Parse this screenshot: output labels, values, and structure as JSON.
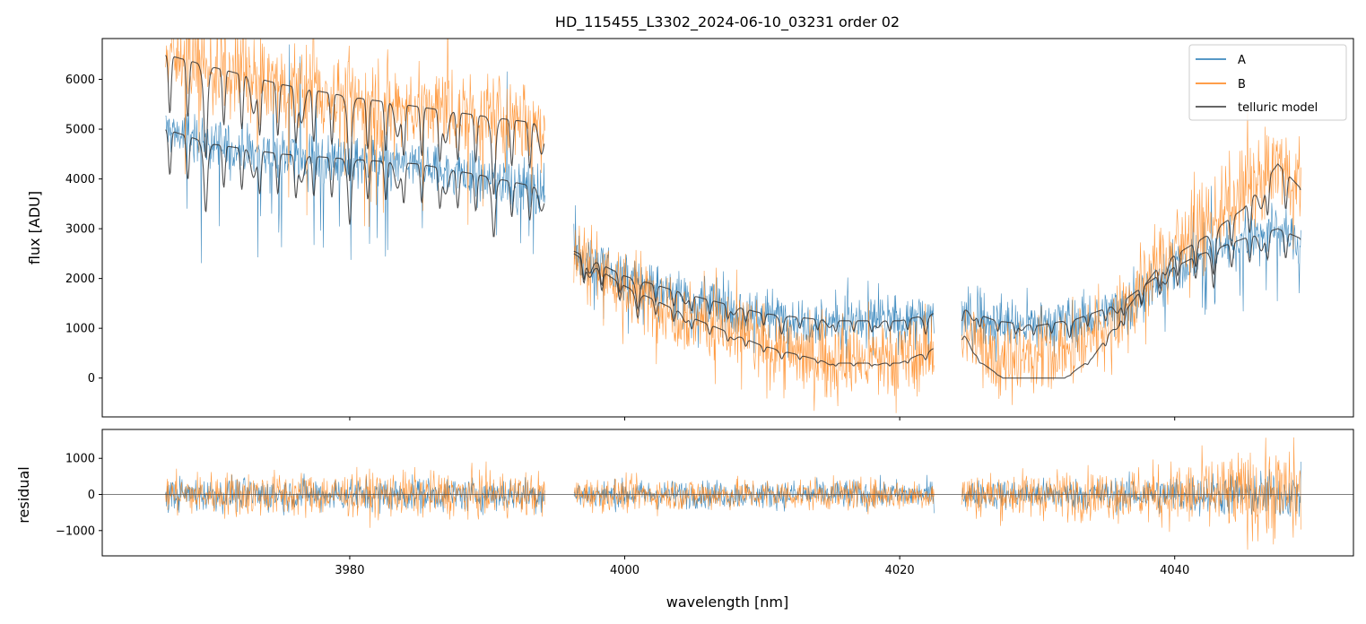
{
  "colors": {
    "A": "#1f77b4",
    "B": "#ff7f0e",
    "model": "#333333",
    "zero_line": "#555555"
  },
  "chart_data": [
    {
      "panel": "top",
      "type": "line",
      "title": "HD_115455_L3302_2024-06-10_03231  order 02",
      "xlabel": "",
      "ylabel": "flux [ADU]",
      "xlim": [
        3962,
        4053
      ],
      "ylim": [
        -780,
        6820
      ],
      "x_ticks": [
        3980,
        4000,
        4020,
        4040
      ],
      "y_ticks": [
        0,
        1000,
        2000,
        3000,
        4000,
        5000,
        6000
      ],
      "y_tick_labels": [
        "0",
        "1000",
        "2000",
        "3000",
        "4000",
        "5000",
        "6000"
      ],
      "legend": {
        "position": "top-right",
        "entries": [
          {
            "label": "A",
            "color": "#1f77b4"
          },
          {
            "label": "B",
            "color": "#ff7f0e"
          },
          {
            "label": "telluric model",
            "color": "#333333"
          }
        ]
      },
      "segments": [
        {
          "x0": 3966.6,
          "x1": 3994.2
        },
        {
          "x0": 3996.3,
          "x1": 4022.5
        },
        {
          "x0": 4024.5,
          "x1": 4049.2
        }
      ],
      "series": [
        {
          "name": "A",
          "continuum_points": [
            [
              3966.6,
              5000
            ],
            [
              3970,
              4700
            ],
            [
              3975,
              4450
            ],
            [
              3980,
              4350
            ],
            [
              3985,
              4250
            ],
            [
              3990,
              4000
            ],
            [
              3994.2,
              3800
            ],
            [
              3996.3,
              2500
            ],
            [
              4000,
              2000
            ],
            [
              4005,
              1600
            ],
            [
              4010,
              1250
            ],
            [
              4015,
              1150
            ],
            [
              4020,
              1150
            ],
            [
              4022.5,
              1250
            ],
            [
              4024.5,
              1300
            ],
            [
              4027,
              1100
            ],
            [
              4030,
              1050
            ],
            [
              4033,
              1150
            ],
            [
              4036,
              1400
            ],
            [
              4039,
              2000
            ],
            [
              4042,
              2500
            ],
            [
              4045,
              2800
            ],
            [
              4047.5,
              3000
            ],
            [
              4049.2,
              2700
            ]
          ],
          "noise": 380
        },
        {
          "name": "B",
          "continuum_points": [
            [
              3966.6,
              6500
            ],
            [
              3970,
              6200
            ],
            [
              3975,
              5850
            ],
            [
              3980,
              5600
            ],
            [
              3985,
              5400
            ],
            [
              3990,
              5250
            ],
            [
              3994.2,
              5100
            ],
            [
              3996.3,
              2600
            ],
            [
              4000,
              1800
            ],
            [
              4005,
              1250
            ],
            [
              4010,
              700
            ],
            [
              4015,
              350
            ],
            [
              4020,
              350
            ],
            [
              4022.5,
              600
            ],
            [
              4024.5,
              900
            ],
            [
              4027,
              500
            ],
            [
              4030,
              400
            ],
            [
              4033,
              700
            ],
            [
              4036,
              1300
            ],
            [
              4039,
              2400
            ],
            [
              4042,
              3000
            ],
            [
              4045,
              3700
            ],
            [
              4047.5,
              4300
            ],
            [
              4049.2,
              3900
            ]
          ],
          "noise": 600
        },
        {
          "name": "telluric model A",
          "continuum_points": [
            [
              3966.6,
              5000
            ],
            [
              3970,
              4700
            ],
            [
              3975,
              4500
            ],
            [
              3980,
              4400
            ],
            [
              3985,
              4300
            ],
            [
              3990,
              4050
            ],
            [
              3994.2,
              3800
            ],
            [
              3996.3,
              2550
            ],
            [
              4000,
              2050
            ],
            [
              4005,
              1650
            ],
            [
              4010,
              1300
            ],
            [
              4015,
              1150
            ],
            [
              4020,
              1150
            ],
            [
              4022.5,
              1300
            ],
            [
              4024.5,
              1400
            ],
            [
              4027,
              1150
            ],
            [
              4030,
              1050
            ],
            [
              4033,
              1200
            ],
            [
              4036,
              1500
            ],
            [
              4039,
              2100
            ],
            [
              4042,
              2500
            ],
            [
              4045,
              2800
            ],
            [
              4047.5,
              3000
            ],
            [
              4049.2,
              2800
            ]
          ]
        },
        {
          "name": "telluric model B",
          "continuum_points": [
            [
              3966.6,
              6500
            ],
            [
              3970,
              6250
            ],
            [
              3975,
              5900
            ],
            [
              3980,
              5650
            ],
            [
              3985,
              5450
            ],
            [
              3990,
              5250
            ],
            [
              3994.2,
              5100
            ],
            [
              3996.3,
              2500
            ],
            [
              4000,
              1850
            ],
            [
              4005,
              1200
            ],
            [
              4010,
              650
            ],
            [
              4015,
              300
            ],
            [
              4020,
              300
            ],
            [
              4022.5,
              600
            ],
            [
              4024.5,
              950
            ],
            [
              4026,
              300
            ],
            [
              4027.5,
              0
            ],
            [
              4032,
              0
            ],
            [
              4034,
              400
            ],
            [
              4036,
              1200
            ],
            [
              4039,
              2300
            ],
            [
              4042,
              2800
            ],
            [
              4045,
              3400
            ],
            [
              4047.5,
              4300
            ],
            [
              4049.2,
              3800
            ]
          ]
        }
      ]
    },
    {
      "panel": "bottom",
      "type": "line",
      "title": "",
      "xlabel": "wavelength [nm]",
      "ylabel": "residual",
      "xlim": [
        3962,
        4053
      ],
      "ylim": [
        -1700,
        1800
      ],
      "x_ticks": [
        3980,
        4000,
        4020,
        4040
      ],
      "x_tick_labels": [
        "3980",
        "4000",
        "4020",
        "4040"
      ],
      "y_ticks": [
        -1000,
        0,
        1000
      ],
      "y_tick_labels": [
        "−1000",
        "0",
        "1000"
      ],
      "series": [
        {
          "name": "A residual",
          "amplitude_points": [
            [
              3966.6,
              600
            ],
            [
              3994.2,
              600
            ],
            [
              3996.3,
              500
            ],
            [
              4022.5,
              500
            ],
            [
              4024.5,
              500
            ],
            [
              4036,
              600
            ],
            [
              4049.2,
              900
            ]
          ]
        },
        {
          "name": "B residual",
          "amplitude_points": [
            [
              3966.6,
              800
            ],
            [
              3994.2,
              800
            ],
            [
              3996.3,
              600
            ],
            [
              4022.5,
              550
            ],
            [
              4024.5,
              800
            ],
            [
              4036,
              900
            ],
            [
              4049.2,
              1800
            ]
          ]
        }
      ]
    }
  ]
}
